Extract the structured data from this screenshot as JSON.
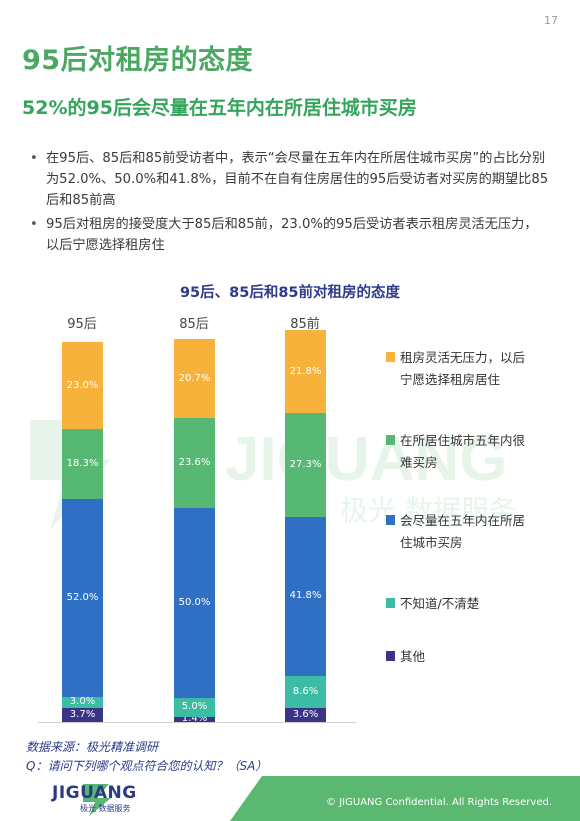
{
  "page_number": "17",
  "title": "95后对租房的态度",
  "subtitle": "52%的95后会尽量在五年内在所居住城市买房",
  "bullets": [
    "在95后、85后和85前受访者中，表示“会尽量在五年内在所居住城市买房”的占比分别为52.0%、50.0%和41.8%，目前不在自有住房居住的95后受访者对买房的期望比85后和85前高",
    "95后对租房的接受度大于85后和85前，23.0%的95后受访者表示租房灵活无压力，以后宁愿选择租房住"
  ],
  "chart_data": {
    "type": "bar",
    "stacked": true,
    "title": "95后、85后和85前对租房的态度",
    "categories": [
      "95后",
      "85后",
      "85前"
    ],
    "series": [
      {
        "name": "其他",
        "color": "#3b3385",
        "values": [
          3.7,
          1.4,
          3.6
        ],
        "labels": [
          "3.7%",
          "1.4%",
          "3.6%"
        ]
      },
      {
        "name": "不知道/不清楚",
        "color": "#3cbca4",
        "values": [
          3.0,
          5.0,
          8.6
        ],
        "labels": [
          "3.0%",
          "5.0%",
          "8.6%"
        ]
      },
      {
        "name": "会尽量在五年内在所居住城市买房",
        "color": "#2f6fc4",
        "values": [
          52.0,
          50.0,
          41.8
        ],
        "labels": [
          "52.0%",
          "50.0%",
          "41.8%"
        ]
      },
      {
        "name": "在所居住城市五年内很难买房",
        "color": "#57b873",
        "values": [
          18.3,
          23.6,
          27.3
        ],
        "labels": [
          "18.3%",
          "23.6%",
          "27.3%"
        ]
      },
      {
        "name": "租房灵活无压力，以后宁愿选择租房居住",
        "color": "#f7b23b",
        "values": [
          23.0,
          20.7,
          21.8
        ],
        "labels": [
          "23.0%",
          "20.7%",
          "21.8%"
        ]
      }
    ],
    "legend_position": "right",
    "ylim": [
      0,
      100
    ]
  },
  "legend": [
    {
      "lines": [
        "租房灵活无压力，以后",
        "宁愿选择租房居住"
      ],
      "color": "#f7b23b"
    },
    {
      "lines": [
        "在所居住城市五年内很",
        "难买房"
      ],
      "color": "#57b873"
    },
    {
      "lines": [
        "会尽量在五年内在所居",
        "住城市买房"
      ],
      "color": "#2f6fc4"
    },
    {
      "lines": [
        "不知道/不清楚"
      ],
      "color": "#3cbca4"
    },
    {
      "lines": [
        "其他"
      ],
      "color": "#3b3385"
    }
  ],
  "watermark": {
    "brand": "JIGUANG",
    "sub": "极光  数据服务"
  },
  "source": {
    "line1": "数据来源：极光精准调研",
    "line2": "Q：请问下列哪个观点符合您的认知？（SA）"
  },
  "footer": {
    "logo_text": "JIGUANG",
    "logo_sub": "极光 数据服务",
    "copyright": "© JIGUANG  Confidential. All Rights Reserved.",
    "band_color": "#5bb870"
  }
}
